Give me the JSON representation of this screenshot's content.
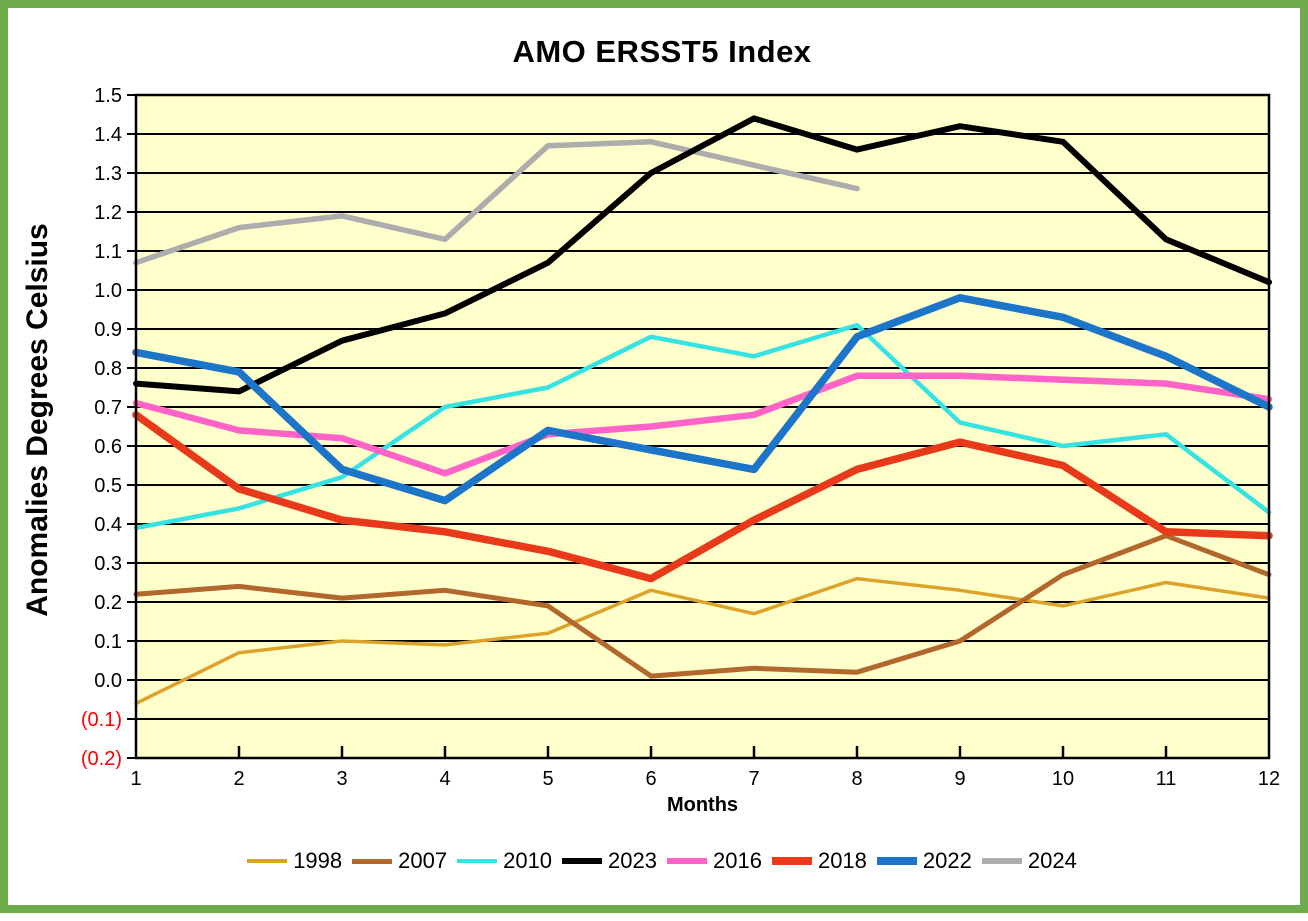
{
  "frame": {
    "border_color": "#6FAC4B",
    "background": "#FFFFFF"
  },
  "chart": {
    "title": "AMO ERSST5 Index",
    "y_axis_title": "Anomalies Degrees Celsius",
    "x_axis_title": "Months",
    "plot_background": "#FFFFCC",
    "gridline_color": "#000000",
    "axis_color": "#000000",
    "tick_label_color": "#000000",
    "negative_tick_label_color": "#FF0000",
    "y_tick_labels": [
      "1.5",
      "1.4",
      "1.3",
      "1.2",
      "1.1",
      "1.0",
      "0.9",
      "0.8",
      "0.7",
      "0.6",
      "0.5",
      "0.4",
      "0.3",
      "0.2",
      "0.1",
      "0.0",
      "(0.1)",
      "(0.2)"
    ],
    "x_tick_labels": [
      "1",
      "2",
      "3",
      "4",
      "5",
      "6",
      "7",
      "8",
      "9",
      "10",
      "11",
      "12"
    ]
  },
  "chart_data": {
    "type": "line",
    "title": "AMO ERSST5 Index",
    "xlabel": "Months",
    "ylabel": "Anomalies Degrees Celsius",
    "x": [
      1,
      2,
      3,
      4,
      5,
      6,
      7,
      8,
      9,
      10,
      11,
      12
    ],
    "ylim": [
      -0.2,
      1.5
    ],
    "ytick_interval": 0.1,
    "grid": true,
    "legend_position": "bottom",
    "series": [
      {
        "name": "1998",
        "color": "#DBA32A",
        "line_width": 3.5,
        "values": [
          -0.06,
          0.07,
          0.1,
          0.09,
          0.12,
          0.23,
          0.17,
          0.26,
          0.23,
          0.19,
          0.25,
          0.21
        ]
      },
      {
        "name": "2007",
        "color": "#B2672D",
        "line_width": 5,
        "values": [
          0.22,
          0.24,
          0.21,
          0.23,
          0.19,
          0.01,
          0.03,
          0.02,
          0.1,
          0.27,
          0.37,
          0.27
        ]
      },
      {
        "name": "2010",
        "color": "#35E3E3",
        "line_width": 4.5,
        "values": [
          0.39,
          0.44,
          0.52,
          0.7,
          0.75,
          0.88,
          0.83,
          0.91,
          0.66,
          0.6,
          0.63,
          0.43
        ]
      },
      {
        "name": "2023",
        "color": "#000000",
        "line_width": 6,
        "values": [
          0.76,
          0.74,
          0.87,
          0.94,
          1.07,
          1.3,
          1.44,
          1.36,
          1.42,
          1.38,
          1.13,
          1.02
        ]
      },
      {
        "name": "2016",
        "color": "#FF63C8",
        "line_width": 6.5,
        "values": [
          0.71,
          0.64,
          0.62,
          0.53,
          0.63,
          0.65,
          0.68,
          0.78,
          0.78,
          0.77,
          0.76,
          0.72
        ]
      },
      {
        "name": "2018",
        "color": "#E83A1A",
        "line_width": 7.5,
        "values": [
          0.68,
          0.49,
          0.41,
          0.38,
          0.33,
          0.26,
          0.41,
          0.54,
          0.61,
          0.55,
          0.38,
          0.37
        ]
      },
      {
        "name": "2022",
        "color": "#1C75C8",
        "line_width": 7.5,
        "values": [
          0.84,
          0.79,
          0.54,
          0.46,
          0.64,
          0.59,
          0.54,
          0.88,
          0.98,
          0.93,
          0.83,
          0.7
        ]
      },
      {
        "name": "2024",
        "color": "#ADADAD",
        "line_width": 5.5,
        "values": [
          1.07,
          1.16,
          1.19,
          1.13,
          1.37,
          1.38,
          1.32,
          1.26
        ]
      }
    ],
    "draw_order": [
      "1998",
      "2007",
      "2010",
      "2016",
      "2018",
      "2024",
      "2023",
      "2022"
    ]
  }
}
